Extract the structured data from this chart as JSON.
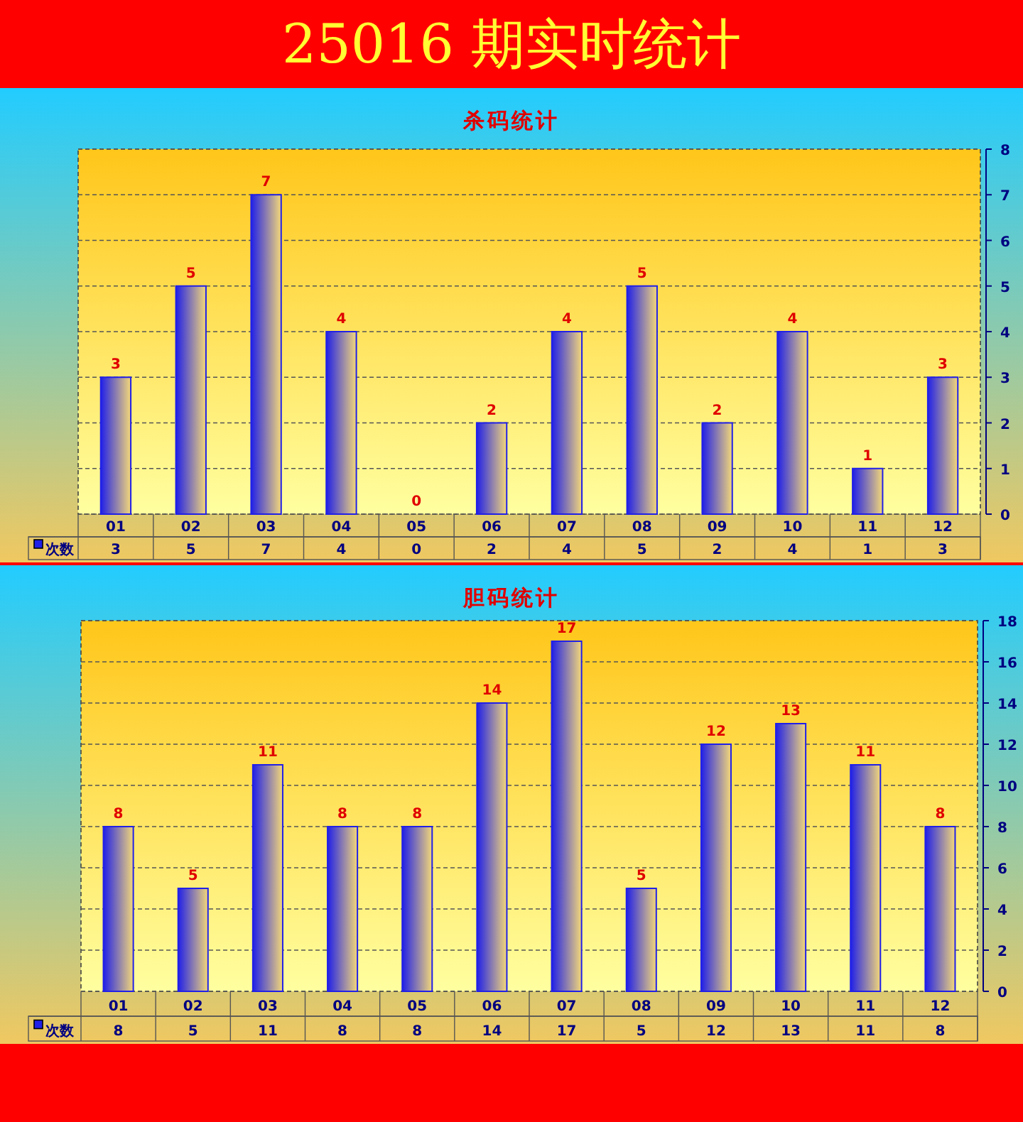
{
  "chart_data": [
    {
      "type": "bar",
      "title": "25016 期实时统计",
      "subtitle": "杀码统计",
      "categories": [
        "01",
        "02",
        "03",
        "04",
        "05",
        "06",
        "07",
        "08",
        "09",
        "10",
        "11",
        "12"
      ],
      "series": [
        {
          "name": "次数",
          "color": "#2020e8",
          "values": [
            3,
            5,
            7,
            4,
            0,
            2,
            4,
            5,
            2,
            4,
            1,
            3
          ]
        }
      ],
      "annotations": [
        "3",
        "5",
        "7",
        "4",
        "0",
        "2",
        "4",
        "5",
        "2",
        "4",
        "1",
        "3"
      ],
      "ylim": [
        0,
        8
      ],
      "yticks": [
        0,
        1,
        2,
        3,
        4,
        5,
        6,
        7,
        8
      ],
      "grid": "y",
      "legend": "bottom",
      "data_labels": true
    },
    {
      "type": "bar",
      "title": "胆码统计",
      "categories": [
        "01",
        "02",
        "03",
        "04",
        "05",
        "06",
        "07",
        "08",
        "09",
        "10",
        "11",
        "12"
      ],
      "series": [
        {
          "name": "次数",
          "color": "#2020e8",
          "values": [
            8,
            5,
            11,
            8,
            8,
            14,
            17,
            5,
            12,
            13,
            11,
            8
          ]
        }
      ],
      "annotations": [
        "8",
        "5",
        "11",
        "8",
        "8",
        "14",
        "17",
        "5",
        "12",
        "13",
        "11",
        "8"
      ],
      "ylim": [
        0,
        18
      ],
      "yticks": [
        0,
        2,
        4,
        6,
        8,
        10,
        12,
        14,
        16,
        18
      ],
      "grid": "y",
      "legend": "bottom",
      "data_labels": true
    }
  ]
}
